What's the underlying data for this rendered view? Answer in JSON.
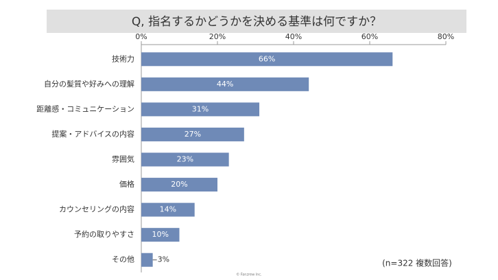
{
  "chart_data": {
    "type": "bar",
    "orientation": "horizontal",
    "title": "Q, 指名するかどうかを決める基準は何ですか？",
    "categories": [
      "技術力",
      "自分の髪質や好みへの理解",
      "距離感・コミュニケーション",
      "提案・アドバイスの内容",
      "雰囲気",
      "価格",
      "カウンセリングの内容",
      "予約の取りやすさ",
      "その他"
    ],
    "values": [
      66,
      44,
      31,
      27,
      23,
      20,
      14,
      10,
      3
    ],
    "value_labels": [
      "66%",
      "44%",
      "31%",
      "27%",
      "23%",
      "20%",
      "14%",
      "10%",
      "3%"
    ],
    "color": "#6f8ab7",
    "xlim": [
      0,
      80
    ],
    "xticks": [
      {
        "value": 0,
        "label": "0%"
      },
      {
        "value": 20,
        "label": "20%"
      },
      {
        "value": 40,
        "label": "40%"
      },
      {
        "value": 60,
        "label": "60%"
      },
      {
        "value": 80,
        "label": "80%"
      }
    ],
    "note": "(n=322 複数回答)",
    "credit": "© Fanzrew Inc."
  }
}
